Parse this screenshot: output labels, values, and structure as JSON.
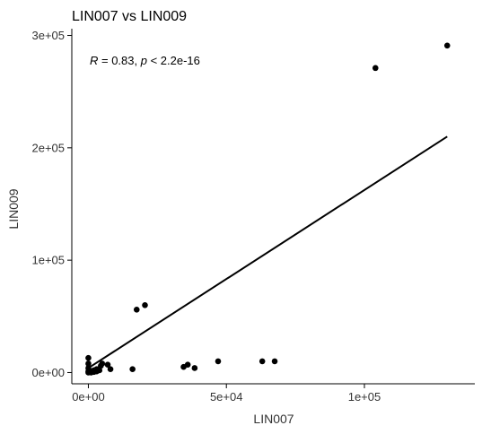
{
  "chart_data": {
    "type": "scatter",
    "title": "LIN007 vs LIN009",
    "xlabel": "LIN007",
    "ylabel": "LIN009",
    "xlim": [
      -6000,
      140000
    ],
    "ylim": [
      -10000,
      306000
    ],
    "x_ticks": [
      {
        "value": 0,
        "label": "0e+00"
      },
      {
        "value": 50000,
        "label": "5e+04"
      },
      {
        "value": 100000,
        "label": "1e+05"
      }
    ],
    "y_ticks": [
      {
        "value": 0,
        "label": "0e+00"
      },
      {
        "value": 100000,
        "label": "1e+05"
      },
      {
        "value": 200000,
        "label": "2e+05"
      },
      {
        "value": 300000,
        "label": "3e+05"
      }
    ],
    "grid": false,
    "annotation": {
      "r_symbol": "R",
      "r_text": " = 0.83, ",
      "p_symbol": "p",
      "p_text": " < 2.2e-16"
    },
    "regression_line": {
      "x": [
        0,
        130000
      ],
      "y": [
        4000,
        210000
      ]
    },
    "points": [
      {
        "x": 0,
        "y": 13000
      },
      {
        "x": 0,
        "y": 8000
      },
      {
        "x": 0,
        "y": 4000
      },
      {
        "x": 0,
        "y": 1000
      },
      {
        "x": 0,
        "y": 0
      },
      {
        "x": 500,
        "y": 500
      },
      {
        "x": 1000,
        "y": 1000
      },
      {
        "x": 1000,
        "y": 0
      },
      {
        "x": 2000,
        "y": 2000
      },
      {
        "x": 2000,
        "y": 500
      },
      {
        "x": 3000,
        "y": 1000
      },
      {
        "x": 3000,
        "y": 3000
      },
      {
        "x": 4000,
        "y": 2000
      },
      {
        "x": 4500,
        "y": 6000
      },
      {
        "x": 5000,
        "y": 8000
      },
      {
        "x": 7000,
        "y": 7000
      },
      {
        "x": 8000,
        "y": 3000
      },
      {
        "x": 16000,
        "y": 3000
      },
      {
        "x": 17500,
        "y": 56000
      },
      {
        "x": 20500,
        "y": 60000
      },
      {
        "x": 34500,
        "y": 5000
      },
      {
        "x": 36000,
        "y": 7000
      },
      {
        "x": 38500,
        "y": 4000
      },
      {
        "x": 47000,
        "y": 10000
      },
      {
        "x": 63000,
        "y": 10000
      },
      {
        "x": 67500,
        "y": 10000
      },
      {
        "x": 104000,
        "y": 271000
      },
      {
        "x": 130000,
        "y": 291000
      }
    ]
  }
}
